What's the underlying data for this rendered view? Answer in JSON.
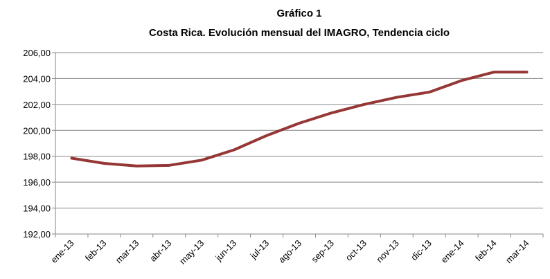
{
  "chart_data": {
    "type": "line",
    "title": "Gráfico 1",
    "subtitle": "Costa Rica.  Evolución mensual del IMAGRO, Tendencia ciclo",
    "categories": [
      "ene-13",
      "feb-13",
      "mar-13",
      "abr-13",
      "may-13",
      "jun-13",
      "jul-13",
      "ago-13",
      "sep-13",
      "oct-13",
      "nov-13",
      "dic-13",
      "ene-14",
      "feb-14",
      "mar-14"
    ],
    "values": [
      197.85,
      197.45,
      197.25,
      197.3,
      197.7,
      198.5,
      199.6,
      200.55,
      201.35,
      202.0,
      202.55,
      202.95,
      203.85,
      204.5,
      204.5
    ],
    "color": "#953735",
    "ylim": [
      192,
      206
    ],
    "yticks": [
      {
        "value": 192,
        "label": "192,00"
      },
      {
        "value": 194,
        "label": "194,00"
      },
      {
        "value": 196,
        "label": "196,00"
      },
      {
        "value": 198,
        "label": "198,00"
      },
      {
        "value": 200,
        "label": "200,00"
      },
      {
        "value": 202,
        "label": "202,00"
      },
      {
        "value": 204,
        "label": "204,00"
      },
      {
        "value": 206,
        "label": "206,00"
      }
    ],
    "grid": true
  }
}
